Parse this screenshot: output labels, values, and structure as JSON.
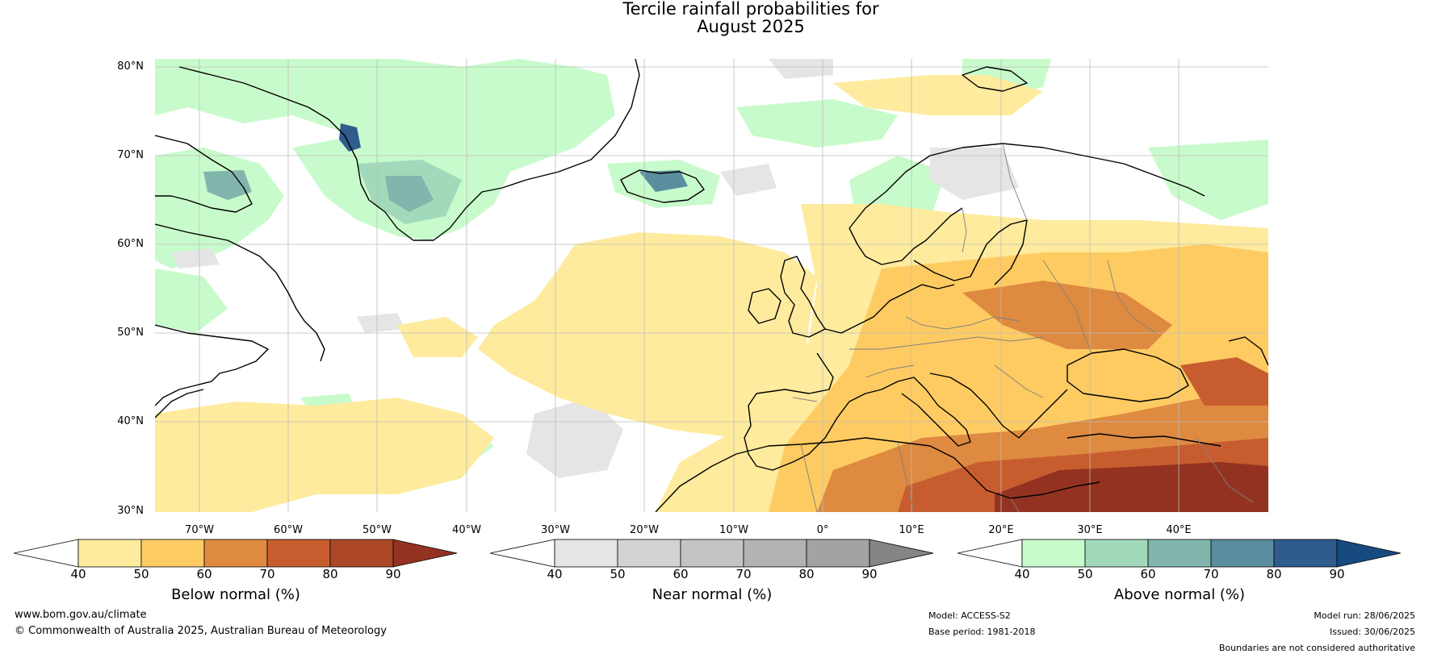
{
  "title": {
    "line1": "Tercile rainfall probabilities for",
    "line2": "August 2025"
  },
  "map": {
    "latitude_labels": [
      "80°N",
      "70°N",
      "60°N",
      "50°N",
      "40°N",
      "30°N"
    ],
    "longitude_labels": [
      "70°W",
      "60°W",
      "50°W",
      "40°W",
      "30°W",
      "20°W",
      "10°W",
      "0°",
      "10°E",
      "20°E",
      "30°E",
      "40°E"
    ]
  },
  "colorbars": [
    {
      "title": "Below normal (%)",
      "ticks": [
        "40",
        "50",
        "60",
        "70",
        "80",
        "90"
      ],
      "colors": [
        "#ffffff",
        "#feeb9d",
        "#fecb62",
        "#de8a40",
        "#c75d2e",
        "#ad4826",
        "#943221"
      ]
    },
    {
      "title": "Near normal (%)",
      "ticks": [
        "40",
        "50",
        "60",
        "70",
        "80",
        "90"
      ],
      "colors": [
        "#ffffff",
        "#e5e5e5",
        "#d3d3d3",
        "#c4c4c4",
        "#b3b3b3",
        "#a3a3a3",
        "#858585"
      ]
    },
    {
      "title": "Above normal (%)",
      "ticks": [
        "40",
        "50",
        "60",
        "70",
        "80",
        "90"
      ],
      "colors": [
        "#ffffff",
        "#c8fbcb",
        "#a3d9bb",
        "#82b6ad",
        "#5a8e9f",
        "#2f5b8d",
        "#174b7f"
      ]
    }
  ],
  "footer": {
    "website": "www.bom.gov.au/climate",
    "copyright": "© Commonwealth of Australia 2025, Australian Bureau of Meteorology",
    "model": "Model: ACCESS-S2",
    "base_period": "Base period: 1981-2018",
    "model_run": "Model run: 28/06/2025",
    "issued": "Issued: 30/06/2025",
    "disclaimer": "Boundaries are not considered authoritative"
  }
}
